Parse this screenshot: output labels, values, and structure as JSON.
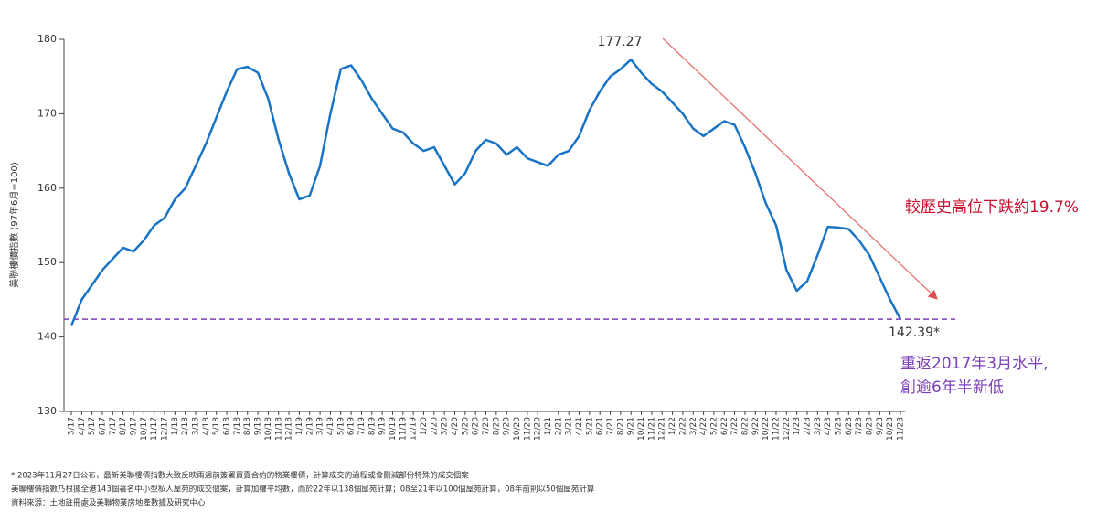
{
  "chart_data": {
    "type": "line",
    "y_label": "美聯樓價指數 (97年6月=100)",
    "categories": [
      "3/17",
      "4/17",
      "5/17",
      "6/17",
      "7/17",
      "8/17",
      "9/17",
      "10/17",
      "11/17",
      "12/17",
      "1/18",
      "2/18",
      "3/18",
      "4/18",
      "5/18",
      "6/18",
      "7/18",
      "8/18",
      "9/18",
      "10/18",
      "11/18",
      "12/18",
      "1/19",
      "2/19",
      "3/19",
      "4/19",
      "5/19",
      "6/19",
      "7/19",
      "8/19",
      "9/19",
      "10/19",
      "11/19",
      "12/19",
      "1/20",
      "2/20",
      "3/20",
      "4/20",
      "5/20",
      "6/20",
      "7/20",
      "8/20",
      "9/20",
      "10/20",
      "11/20",
      "12/20",
      "1/21",
      "2/21",
      "3/21",
      "4/21",
      "5/21",
      "6/21",
      "7/21",
      "8/21",
      "9/21",
      "10/21",
      "11/21",
      "12/21",
      "1/22",
      "2/22",
      "3/22",
      "4/22",
      "5/22",
      "6/22",
      "7/22",
      "8/22",
      "9/22",
      "10/22",
      "11/22",
      "12/22",
      "1/23",
      "2/23",
      "3/23",
      "4/23",
      "5/23",
      "6/23",
      "7/23",
      "8/23",
      "9/23",
      "10/23",
      "11/23"
    ],
    "series": [
      {
        "name": "美聯樓價指數",
        "color": "#1a74c6",
        "values": [
          141.5,
          145,
          147,
          149,
          150.5,
          152,
          151.5,
          153,
          155,
          156,
          158.5,
          160,
          163,
          166,
          169.5,
          173,
          176,
          176.3,
          175.5,
          172,
          166.5,
          162,
          158.5,
          159,
          163,
          170,
          176,
          176.5,
          174.5,
          172,
          170,
          168,
          167.5,
          166,
          165,
          165.5,
          163,
          160.5,
          162,
          165,
          166.5,
          166,
          164.5,
          165.5,
          164,
          163.5,
          163,
          164.5,
          165,
          167,
          170.5,
          173,
          175,
          176,
          177.27,
          175.5,
          174,
          173,
          171.5,
          170,
          168,
          167,
          168,
          169,
          168.5,
          165.5,
          162,
          158,
          155,
          149,
          146.2,
          147.5,
          151,
          154.8,
          154.7,
          154.5,
          153,
          151,
          148,
          145,
          142.39
        ]
      }
    ],
    "ylim": [
      130,
      180
    ],
    "yticks": [
      130,
      140,
      150,
      160,
      170,
      180
    ],
    "reference_line": 142.39,
    "reference_color": "#7b3fb8",
    "annotations": [
      "177.27",
      "142.39*"
    ],
    "trend_note": "較歷史高位下跌約19.7%",
    "level_note": [
      "重返2017年3月水平,",
      "創逾6年半新低"
    ],
    "footnotes": [
      "* 2023年11月27日公布，最新美聯樓價指數大致反映兩週前簽署買賣合約的物業樓價，計算成交的過程或會刪減部份特殊的成交個案",
      "美聯樓價指數乃根據全港143個著名中小型私人屋苑的成交個案，計算加權平均數，而於22年以138個屋苑計算；08至21年以100個屋苑計算，08年前則以50個屋苑計算",
      "資料來源：土地註冊處及美聯物業房地產數據及研究中心"
    ]
  }
}
